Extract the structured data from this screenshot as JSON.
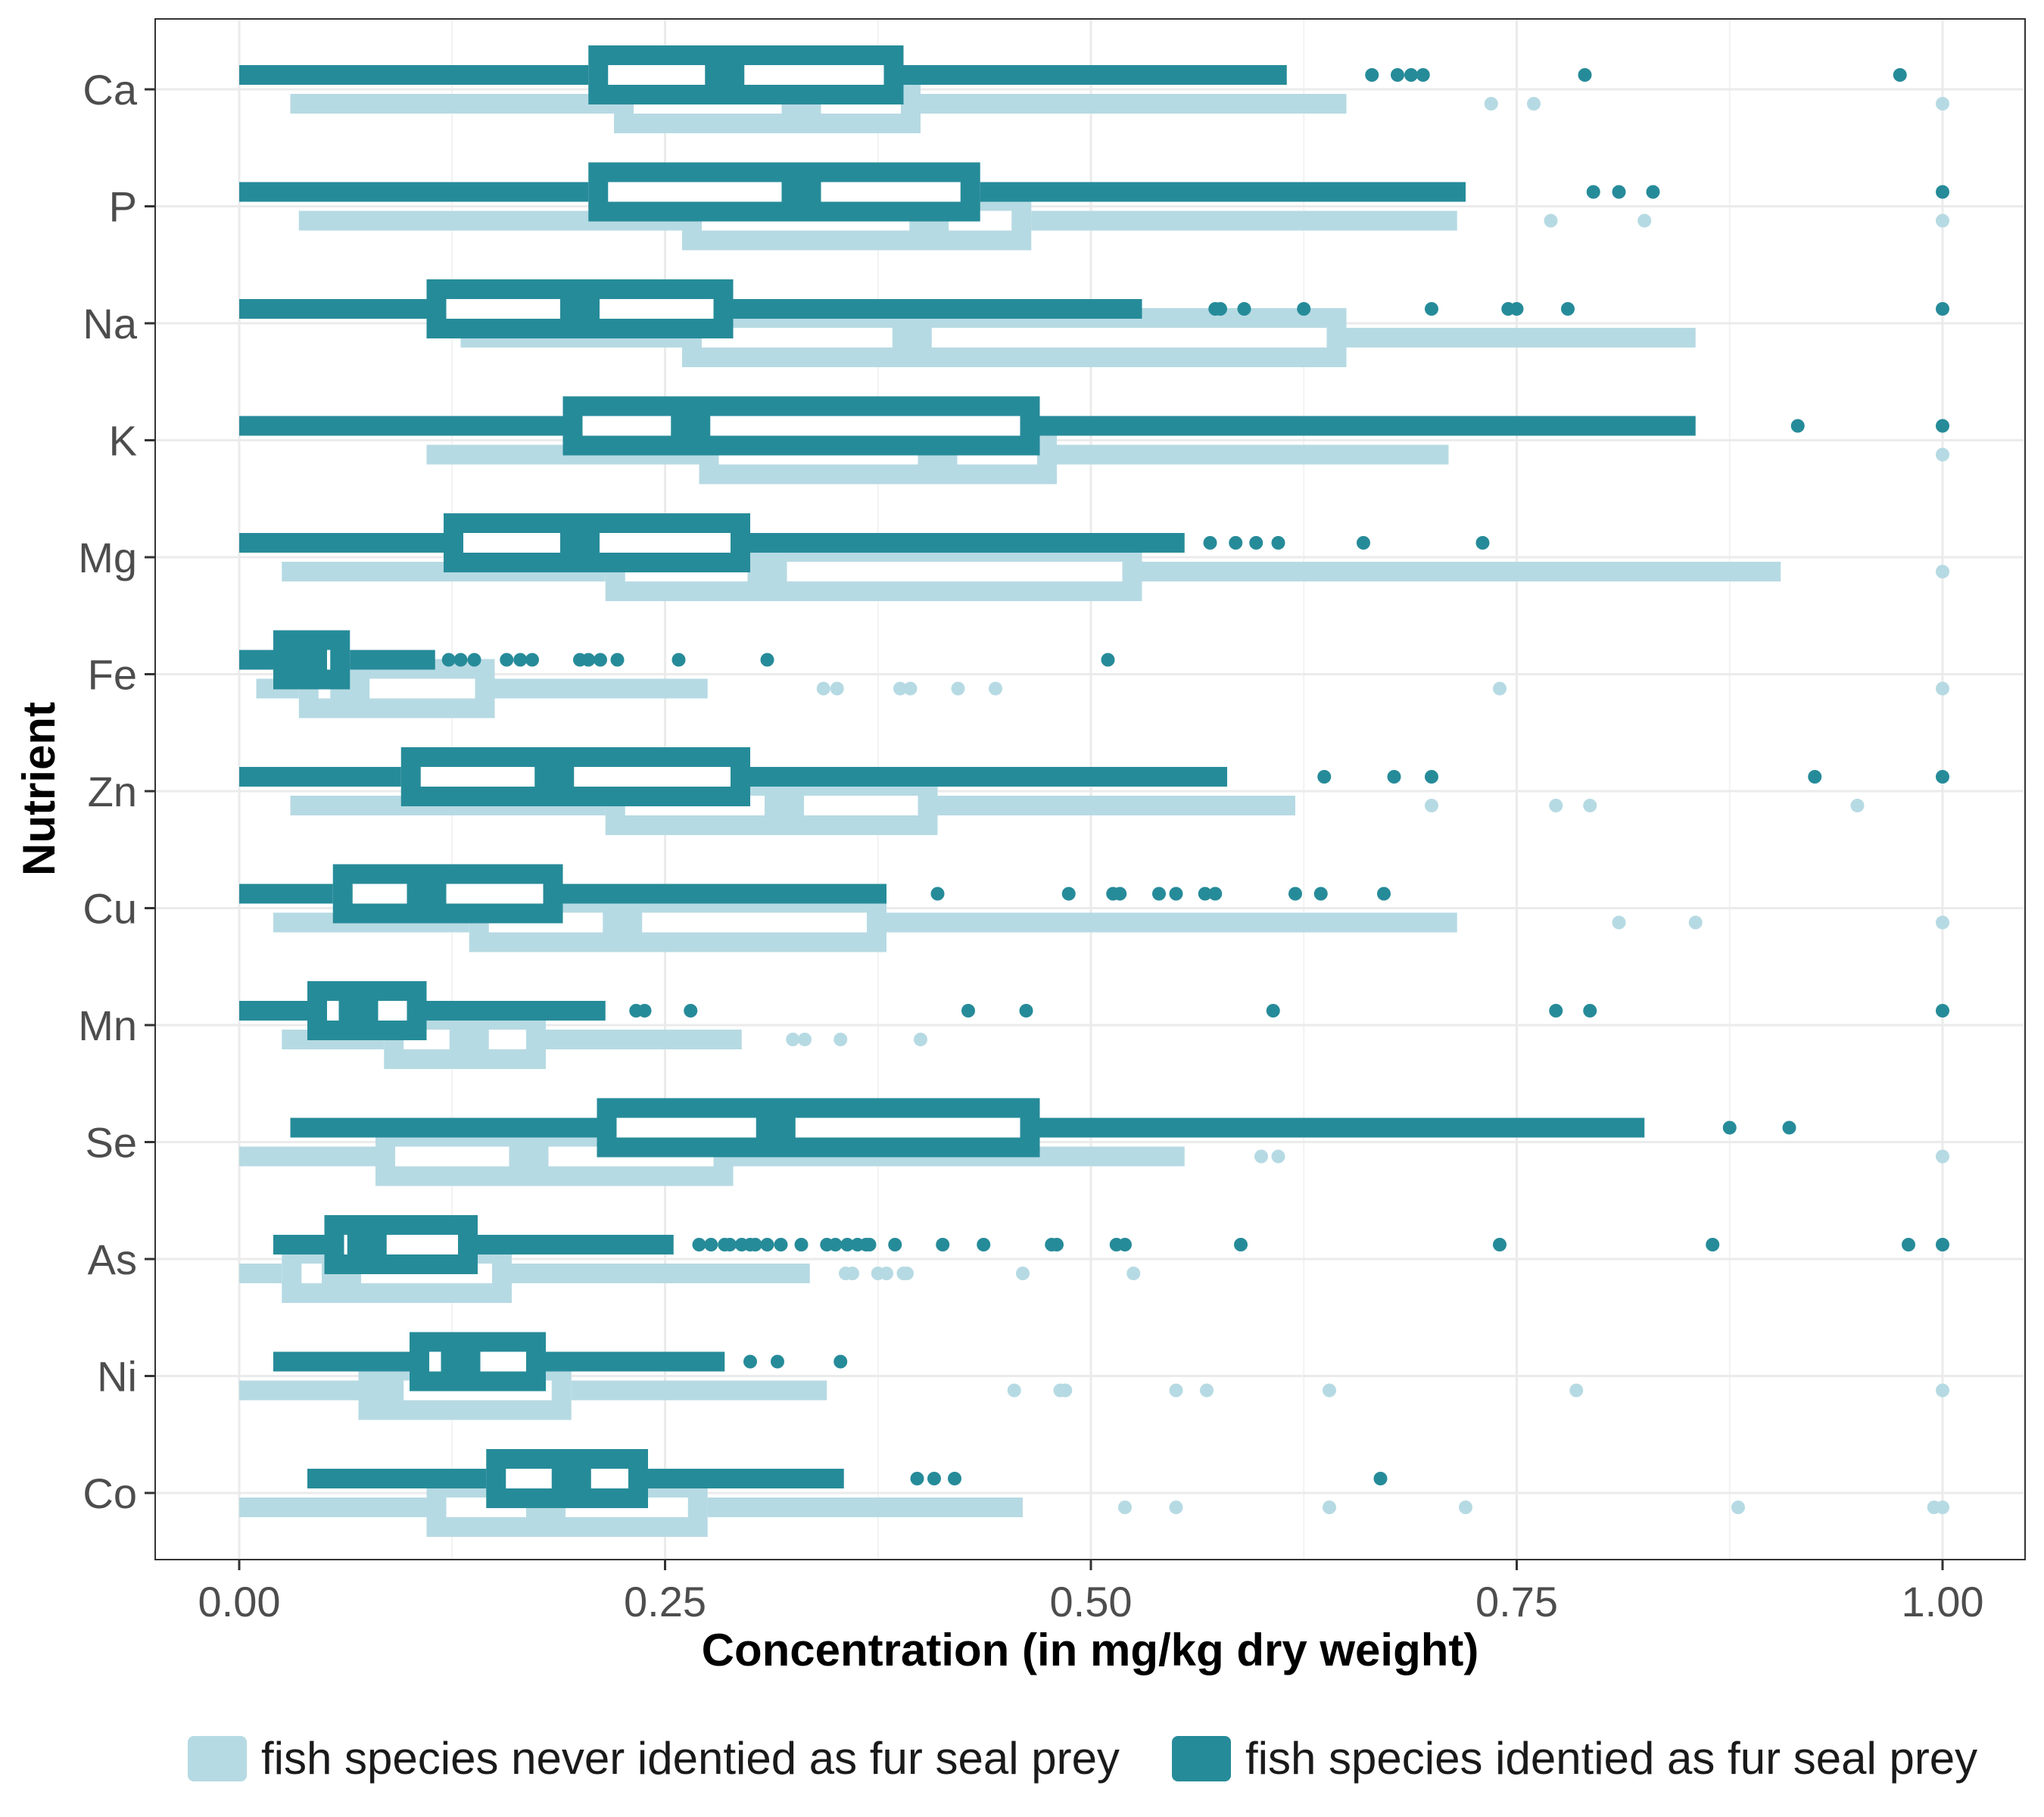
{
  "chart_data": {
    "type": "boxplot",
    "xlabel": "Concentration (in mg/kg dry weight)",
    "ylabel": "Nutrient",
    "xlim": [
      -0.05,
      1.05
    ],
    "x_ticks": [
      0.0,
      0.25,
      0.5,
      0.75,
      1.0
    ],
    "x_tick_labels": [
      "0.00",
      "0.25",
      "0.50",
      "0.75",
      "1.00"
    ],
    "categories": [
      "Ca",
      "P",
      "Na",
      "K",
      "Mg",
      "Fe",
      "Zn",
      "Cu",
      "Mn",
      "Se",
      "As",
      "Ni",
      "Co"
    ],
    "grid": true,
    "legend_position": "bottom",
    "series": [
      {
        "name": "fish species never identied as fur seal prey",
        "color": "#b6dae3",
        "boxes": [
          {
            "cat": "Ca",
            "whisker_low": 0.03,
            "q1": 0.22,
            "median": 0.33,
            "q3": 0.4,
            "whisker_high": 0.65,
            "outliers": [
              0.735,
              0.76,
              1.0
            ]
          },
          {
            "cat": "P",
            "whisker_low": 0.035,
            "q1": 0.26,
            "median": 0.405,
            "q3": 0.465,
            "whisker_high": 0.715,
            "outliers": [
              0.77,
              0.825,
              1.0
            ]
          },
          {
            "cat": "Na",
            "whisker_low": 0.13,
            "q1": 0.26,
            "median": 0.395,
            "q3": 0.65,
            "whisker_high": 0.855,
            "outliers": []
          },
          {
            "cat": "K",
            "whisker_low": 0.11,
            "q1": 0.27,
            "median": 0.41,
            "q3": 0.48,
            "whisker_high": 0.71,
            "outliers": [
              1.0
            ]
          },
          {
            "cat": "Mg",
            "whisker_low": 0.025,
            "q1": 0.215,
            "median": 0.31,
            "q3": 0.53,
            "whisker_high": 0.905,
            "outliers": [
              1.0
            ]
          },
          {
            "cat": "Fe",
            "whisker_low": 0.01,
            "q1": 0.035,
            "median": 0.065,
            "q3": 0.15,
            "whisker_high": 0.275,
            "outliers": [
              0.343,
              0.351,
              0.388,
              0.394,
              0.422,
              0.444,
              0.74,
              1.0
            ]
          },
          {
            "cat": "Zn",
            "whisker_low": 0.03,
            "q1": 0.215,
            "median": 0.32,
            "q3": 0.41,
            "whisker_high": 0.62,
            "outliers": [
              0.7,
              0.773,
              0.793,
              0.95
            ]
          },
          {
            "cat": "Cu",
            "whisker_low": 0.02,
            "q1": 0.135,
            "median": 0.225,
            "q3": 0.38,
            "whisker_high": 0.715,
            "outliers": [
              0.81,
              0.855,
              1.0
            ]
          },
          {
            "cat": "Mn",
            "whisker_low": 0.025,
            "q1": 0.085,
            "median": 0.135,
            "q3": 0.18,
            "whisker_high": 0.295,
            "outliers": [
              0.325,
              0.332,
              0.353,
              0.4
            ]
          },
          {
            "cat": "Se",
            "whisker_low": 0.0,
            "q1": 0.08,
            "median": 0.17,
            "q3": 0.29,
            "whisker_high": 0.555,
            "outliers": [
              0.6,
              0.61,
              1.0
            ]
          },
          {
            "cat": "As",
            "whisker_low": 0.0,
            "q1": 0.025,
            "median": 0.06,
            "q3": 0.16,
            "whisker_high": 0.335,
            "outliers": [
              0.356,
              0.36,
              0.375,
              0.38,
              0.39,
              0.392,
              0.46,
              0.525
            ]
          },
          {
            "cat": "Ni",
            "whisker_low": 0.0,
            "q1": 0.07,
            "median": 0.085,
            "q3": 0.195,
            "whisker_high": 0.345,
            "outliers": [
              0.455,
              0.482,
              0.485,
              0.55,
              0.568,
              0.64,
              0.785,
              1.0
            ]
          },
          {
            "cat": "Co",
            "whisker_low": 0.0,
            "q1": 0.11,
            "median": 0.18,
            "q3": 0.275,
            "whisker_high": 0.46,
            "outliers": [
              0.52,
              0.55,
              0.64,
              0.72,
              0.88,
              0.995,
              1.0
            ]
          }
        ]
      },
      {
        "name": "fish species identied as fur seal prey",
        "color": "#268b99",
        "boxes": [
          {
            "cat": "Ca",
            "whisker_low": 0.0,
            "q1": 0.205,
            "median": 0.285,
            "q3": 0.39,
            "whisker_high": 0.615,
            "outliers": [
              0.665,
              0.68,
              0.688,
              0.695,
              0.79,
              0.975
            ]
          },
          {
            "cat": "P",
            "whisker_low": 0.0,
            "q1": 0.205,
            "median": 0.33,
            "q3": 0.435,
            "whisker_high": 0.72,
            "outliers": [
              0.795,
              0.81,
              0.83,
              1.0
            ]
          },
          {
            "cat": "Na",
            "whisker_low": 0.0,
            "q1": 0.11,
            "median": 0.2,
            "q3": 0.29,
            "whisker_high": 0.53,
            "outliers": [
              0.573,
              0.576,
              0.59,
              0.625,
              0.7,
              0.745,
              0.75,
              0.78,
              1.0
            ]
          },
          {
            "cat": "K",
            "whisker_low": 0.0,
            "q1": 0.19,
            "median": 0.265,
            "q3": 0.47,
            "whisker_high": 0.855,
            "outliers": [
              0.915,
              1.0
            ]
          },
          {
            "cat": "Mg",
            "whisker_low": 0.0,
            "q1": 0.12,
            "median": 0.2,
            "q3": 0.3,
            "whisker_high": 0.555,
            "outliers": [
              0.57,
              0.585,
              0.597,
              0.61,
              0.66,
              0.73
            ]
          },
          {
            "cat": "Fe",
            "whisker_low": 0.0,
            "q1": 0.02,
            "median": 0.04,
            "q3": 0.065,
            "whisker_high": 0.115,
            "outliers": [
              0.123,
              0.13,
              0.138,
              0.157,
              0.165,
              0.172,
              0.2,
              0.205,
              0.212,
              0.222,
              0.258,
              0.31,
              0.51
            ]
          },
          {
            "cat": "Zn",
            "whisker_low": 0.0,
            "q1": 0.095,
            "median": 0.185,
            "q3": 0.3,
            "whisker_high": 0.58,
            "outliers": [
              0.637,
              0.678,
              0.7,
              0.925,
              1.0
            ]
          },
          {
            "cat": "Cu",
            "whisker_low": 0.0,
            "q1": 0.055,
            "median": 0.11,
            "q3": 0.19,
            "whisker_high": 0.38,
            "outliers": [
              0.41,
              0.487,
              0.513,
              0.517,
              0.54,
              0.55,
              0.567,
              0.573,
              0.62,
              0.635,
              0.672
            ]
          },
          {
            "cat": "Mn",
            "whisker_low": 0.0,
            "q1": 0.04,
            "median": 0.07,
            "q3": 0.11,
            "whisker_high": 0.215,
            "outliers": [
              0.233,
              0.238,
              0.265,
              0.428,
              0.462,
              0.607,
              0.773,
              0.793,
              1.0
            ]
          },
          {
            "cat": "Se",
            "whisker_low": 0.03,
            "q1": 0.21,
            "median": 0.315,
            "q3": 0.47,
            "whisker_high": 0.825,
            "outliers": [
              0.875,
              0.91
            ]
          },
          {
            "cat": "As",
            "whisker_low": 0.02,
            "q1": 0.05,
            "median": 0.075,
            "q3": 0.14,
            "whisker_high": 0.255,
            "outliers": [
              0.27,
              0.277,
              0.285,
              0.288,
              0.295,
              0.3,
              0.303,
              0.31,
              0.318,
              0.33,
              0.345,
              0.35,
              0.357,
              0.363,
              0.368,
              0.37,
              0.385,
              0.413,
              0.437,
              0.477,
              0.48,
              0.515,
              0.52,
              0.588,
              0.74,
              0.865,
              0.98,
              1.0
            ]
          },
          {
            "cat": "Ni",
            "whisker_low": 0.02,
            "q1": 0.1,
            "median": 0.13,
            "q3": 0.18,
            "whisker_high": 0.285,
            "outliers": [
              0.3,
              0.316,
              0.353
            ]
          },
          {
            "cat": "Co",
            "whisker_low": 0.04,
            "q1": 0.145,
            "median": 0.195,
            "q3": 0.24,
            "whisker_high": 0.355,
            "outliers": [
              0.398,
              0.408,
              0.42,
              0.67
            ]
          }
        ]
      }
    ]
  }
}
